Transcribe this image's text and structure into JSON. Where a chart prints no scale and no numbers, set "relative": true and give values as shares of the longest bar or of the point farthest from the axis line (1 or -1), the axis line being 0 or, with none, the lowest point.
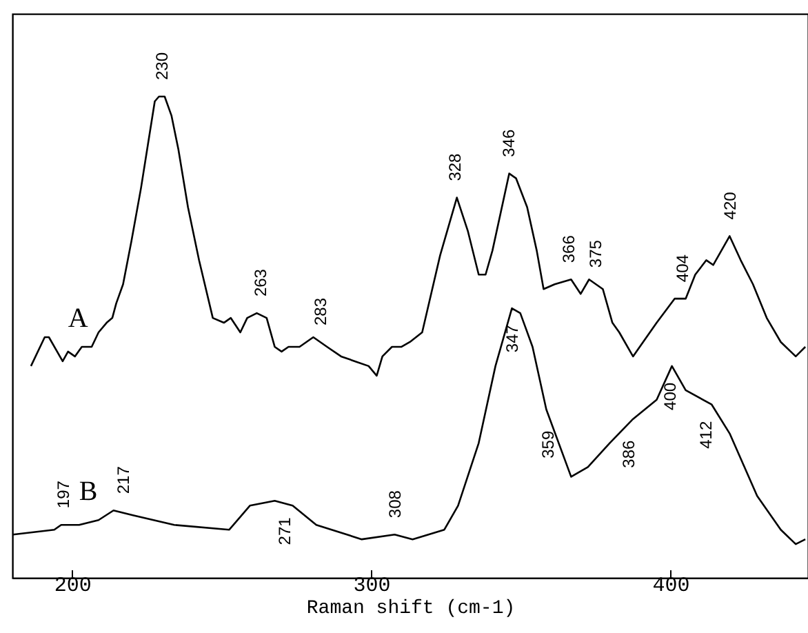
{
  "chart_data": {
    "type": "line",
    "relative": true,
    "xlabel": "Raman shift (cm-1)",
    "x": [
      186.2,
      190.8,
      192.2,
      196.8,
      198.6,
      200.9,
      203.2,
      206.5,
      208.8,
      211.5,
      213.4,
      214.7,
      217.0,
      219.8,
      223.0,
      225.3,
      227.6,
      229.0,
      230.9,
      233.2,
      235.5,
      238.7,
      242.4,
      247.0,
      250.7,
      253.0,
      256.2,
      258.5,
      261.7,
      265.0,
      267.7,
      270.0,
      272.3,
      276.0,
      280.6,
      285.2,
      289.9,
      294.5,
      299.1,
      301.8,
      303.7,
      306.9,
      310.1,
      312.9,
      317.0,
      323.0,
      328.6,
      332.3,
      335.9,
      338.2,
      340.5,
      346.1,
      348.4,
      352.1,
      355.3,
      357.6,
      361.3,
      366.8,
      370.0,
      372.8,
      377.4,
      380.6,
      382.9,
      387.5,
      395.4,
      401.4,
      405.1,
      408.3,
      412.0,
      414.3,
      419.8,
      423.5,
      427.6,
      432.2,
      436.9,
      441.9,
      445.1
    ],
    "series": [
      {
        "name": "A",
        "color": "#000000",
        "values": [
          0.44,
          0.5,
          0.5,
          0.45,
          0.47,
          0.46,
          0.48,
          0.48,
          0.51,
          0.53,
          0.54,
          0.57,
          0.61,
          0.7,
          0.81,
          0.9,
          0.99,
          1.0,
          1.0,
          0.96,
          0.89,
          0.77,
          0.66,
          0.54,
          0.53,
          0.54,
          0.51,
          0.54,
          0.55,
          0.54,
          0.48,
          0.47,
          0.48,
          0.48,
          0.5,
          0.48,
          0.46,
          0.45,
          0.44,
          0.42,
          0.46,
          0.48,
          0.48,
          0.49,
          0.51,
          0.67,
          0.79,
          0.72,
          0.63,
          0.63,
          0.68,
          0.84,
          0.83,
          0.77,
          0.68,
          0.6,
          0.61,
          0.62,
          0.59,
          0.62,
          0.6,
          0.53,
          0.51,
          0.46,
          0.53,
          0.58,
          0.58,
          0.63,
          0.66,
          0.65,
          0.71,
          0.66,
          0.61,
          0.54,
          0.49,
          0.46,
          0.48
        ]
      },
      {
        "name": "B",
        "color": "#000000",
        "x": [
          180.2,
          194.0,
          196.3,
          202.3,
          208.8,
          213.8,
          220.3,
          234.1,
          252.5,
          259.4,
          267.7,
          273.7,
          281.6,
          296.8,
          307.8,
          313.8,
          324.4,
          329.0,
          335.9,
          341.5,
          347.0,
          349.8,
          353.9,
          358.5,
          366.8,
          372.4,
          379.7,
          387.5,
          395.4,
          400.5,
          405.1,
          413.8,
          419.8,
          429.0,
          436.9,
          441.9,
          445.1
        ],
        "values": [
          0.09,
          0.1,
          0.11,
          0.11,
          0.12,
          0.14,
          0.13,
          0.11,
          0.1,
          0.15,
          0.16,
          0.15,
          0.11,
          0.08,
          0.09,
          0.08,
          0.1,
          0.15,
          0.28,
          0.44,
          0.56,
          0.55,
          0.48,
          0.35,
          0.21,
          0.23,
          0.28,
          0.33,
          0.37,
          0.44,
          0.39,
          0.36,
          0.3,
          0.17,
          0.1,
          0.07,
          0.08
        ]
      }
    ],
    "xlim": [
      180,
      446
    ],
    "xticks": [
      200,
      300,
      400
    ],
    "grid": false,
    "marker": "none",
    "line_style": "solid",
    "annotations": [
      {
        "text": "230",
        "x": 230,
        "y": 1.0
      },
      {
        "text": "263",
        "x": 263,
        "y": 0.55
      },
      {
        "text": "283",
        "x": 283,
        "y": 0.49
      },
      {
        "text": "328",
        "x": 328,
        "y": 0.79
      },
      {
        "text": "346",
        "x": 346,
        "y": 0.84
      },
      {
        "text": "366",
        "x": 366,
        "y": 0.62
      },
      {
        "text": "375",
        "x": 375,
        "y": 0.61
      },
      {
        "text": "404",
        "x": 404,
        "y": 0.58
      },
      {
        "text": "420",
        "x": 420,
        "y": 0.71
      },
      {
        "text": "197",
        "x": 197,
        "y": 0.11
      },
      {
        "text": "217",
        "x": 217,
        "y": 0.14
      },
      {
        "text": "271",
        "x": 271,
        "y": 0.16
      },
      {
        "text": "308",
        "x": 308,
        "y": 0.09
      },
      {
        "text": "347",
        "x": 347,
        "y": 0.56
      },
      {
        "text": "359",
        "x": 359,
        "y": 0.34
      },
      {
        "text": "386",
        "x": 386,
        "y": 0.32
      },
      {
        "text": "400",
        "x": 400,
        "y": 0.44
      },
      {
        "text": "412",
        "x": 412,
        "y": 0.36
      }
    ]
  }
}
